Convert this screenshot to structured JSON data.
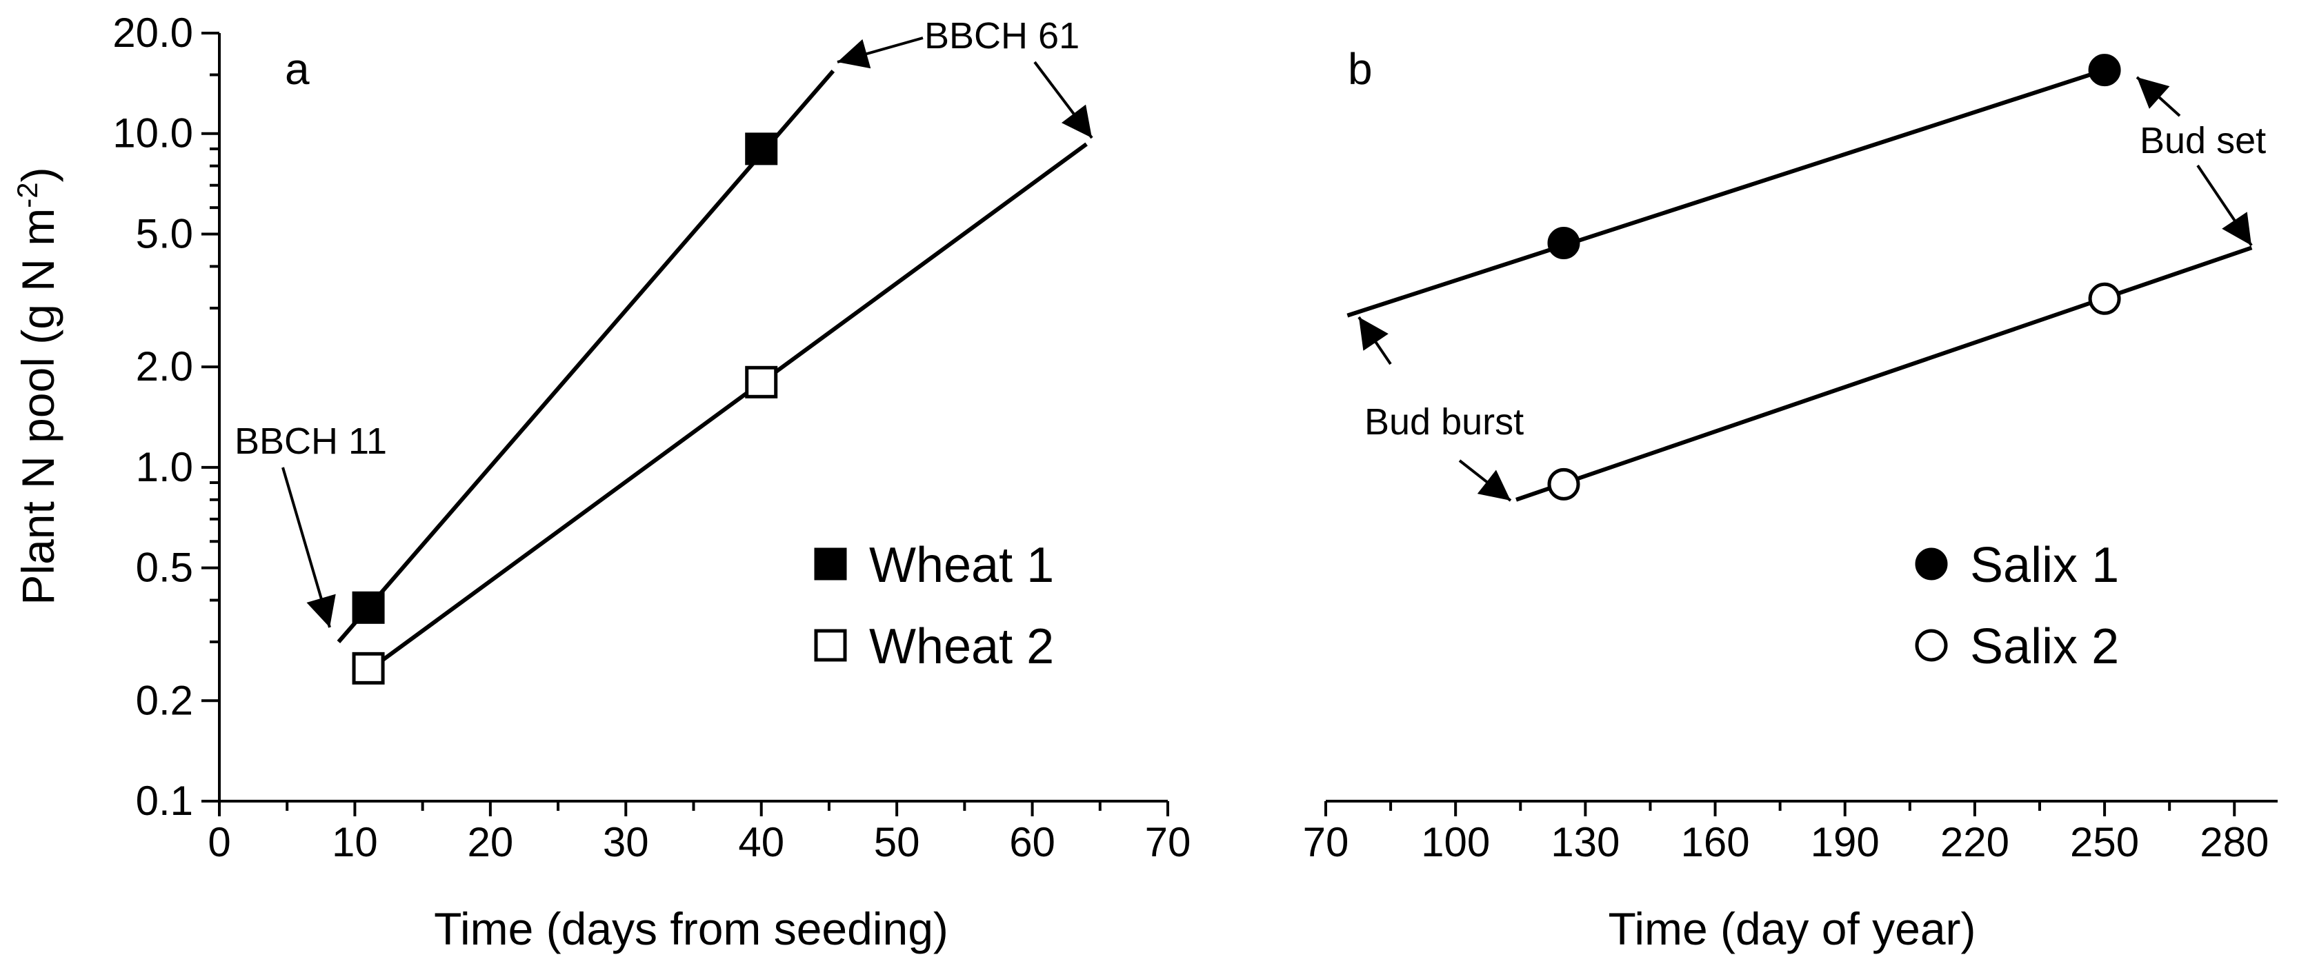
{
  "chart_data": [
    {
      "panel": "a",
      "type": "line",
      "xlabel": "Time (days from seeding)",
      "ylabel": "Plant N pool (g N m",
      "ylabel_sup": "-2",
      "ylabel_close": ")",
      "xlim": [
        0,
        70
      ],
      "ylim": [
        0.1,
        20.0
      ],
      "yscale": "log",
      "xticks": [
        "0",
        "10",
        "20",
        "30",
        "40",
        "50",
        "60",
        "70"
      ],
      "yticks": [
        "0.1",
        "0.2",
        "0.5",
        "1.0",
        "2.0",
        "5.0",
        "10.0",
        "20.0"
      ],
      "series": [
        {
          "name": "Wheat 1",
          "marker": "filled-square",
          "points": [
            {
              "x": 11,
              "y": 0.38
            },
            {
              "x": 40,
              "y": 9.0
            }
          ],
          "line": [
            {
              "x": 8.8,
              "y": 0.3
            },
            {
              "x": 45.3,
              "y": 15.4
            }
          ]
        },
        {
          "name": "Wheat 2",
          "marker": "open-square",
          "points": [
            {
              "x": 11,
              "y": 0.25
            },
            {
              "x": 40,
              "y": 1.8
            }
          ],
          "line": [
            {
              "x": 10.0,
              "y": 0.23
            },
            {
              "x": 64.0,
              "y": 9.3
            }
          ]
        }
      ],
      "annotations": [
        {
          "text": "BBCH 11"
        },
        {
          "text": "BBCH 61"
        }
      ],
      "legend_position": "lower-right"
    },
    {
      "panel": "b",
      "type": "line",
      "xlabel": "Time (day of year)",
      "xlim": [
        70,
        290
      ],
      "ylim": [
        0.1,
        20.0
      ],
      "yscale": "log",
      "xticks": [
        "70",
        "100",
        "130",
        "160",
        "190",
        "220",
        "250",
        "280"
      ],
      "series": [
        {
          "name": "Salix 1",
          "marker": "filled-circle",
          "points": [
            {
              "x": 125,
              "y": 4.7
            },
            {
              "x": 250,
              "y": 15.5
            }
          ],
          "line": [
            {
              "x": 75,
              "y": 2.85
            },
            {
              "x": 250,
              "y": 15.5
            }
          ]
        },
        {
          "name": "Salix 2",
          "marker": "open-circle",
          "points": [
            {
              "x": 125,
              "y": 0.89
            },
            {
              "x": 250,
              "y": 3.2
            }
          ],
          "line": [
            {
              "x": 114,
              "y": 0.8
            },
            {
              "x": 284,
              "y": 4.55
            }
          ]
        }
      ],
      "annotations": [
        {
          "text": "Bud burst"
        },
        {
          "text": "Bud set"
        }
      ],
      "legend_position": "lower-right"
    }
  ]
}
